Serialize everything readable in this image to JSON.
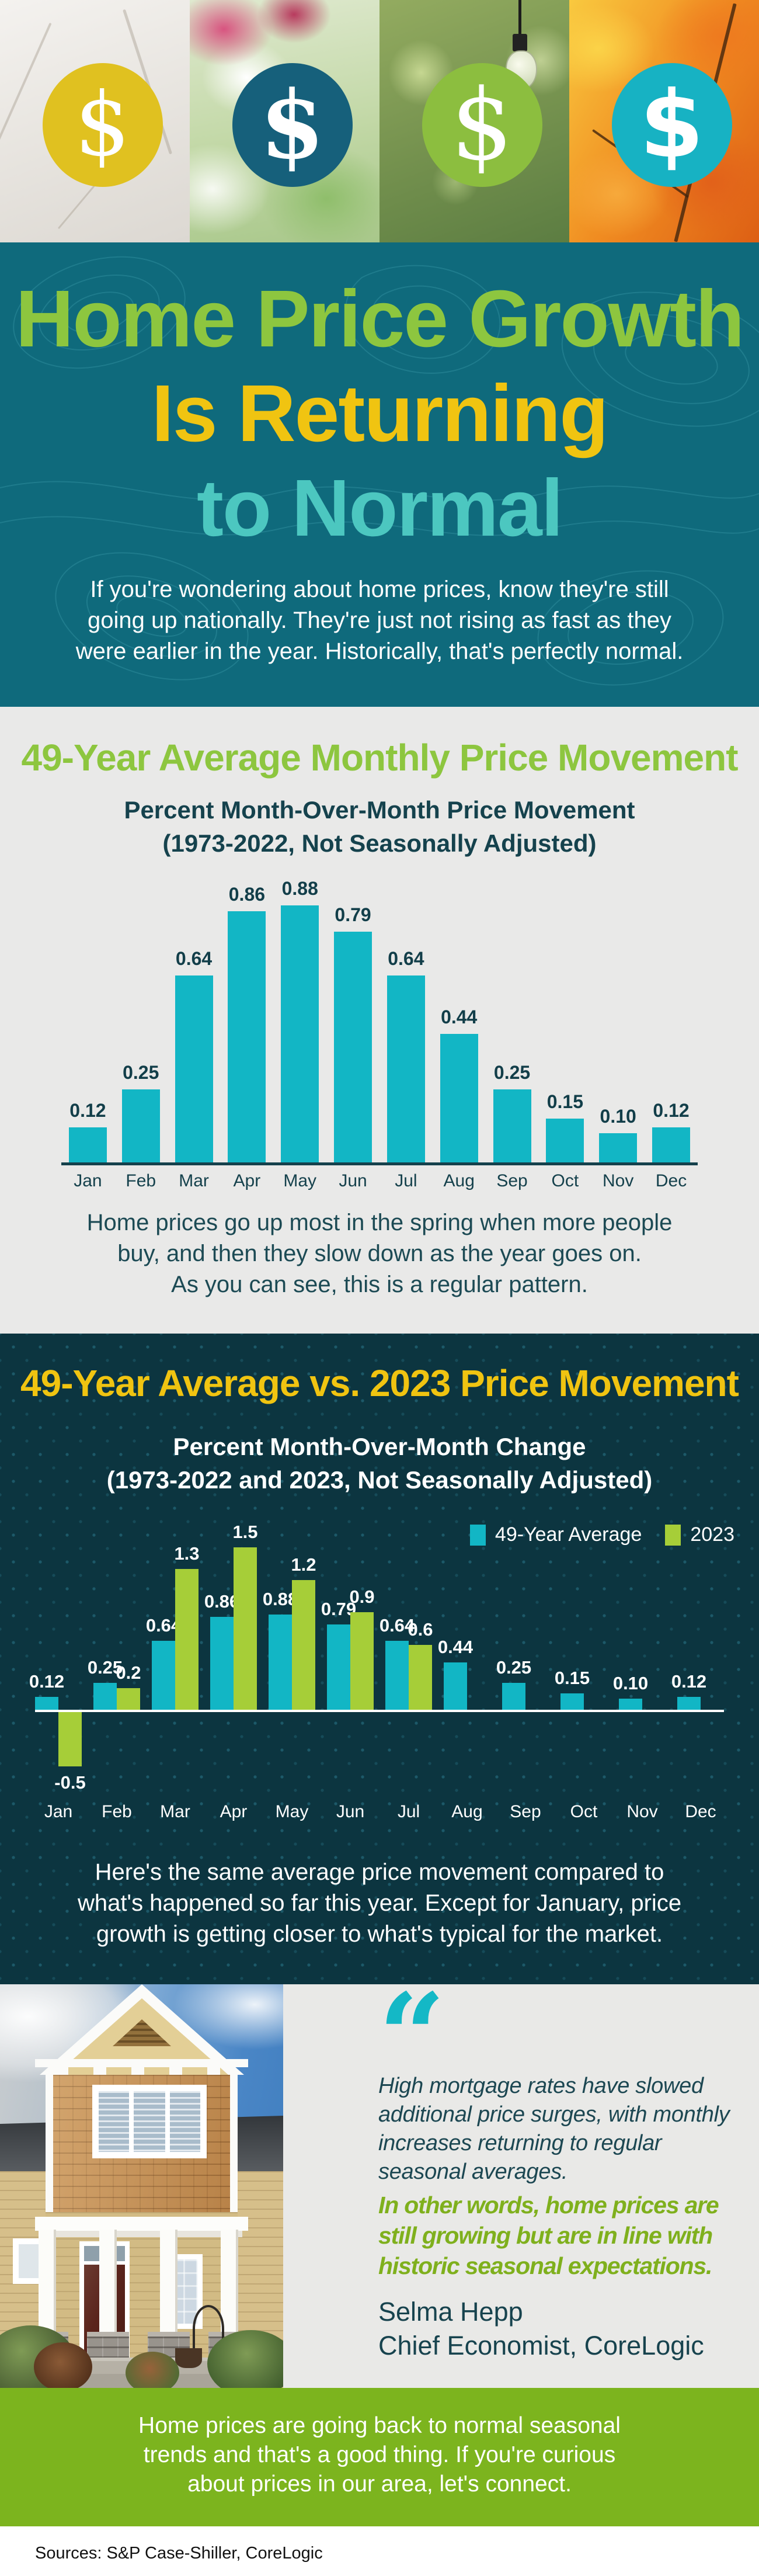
{
  "hero": {
    "dollar_symbol": "$",
    "photos": [
      {
        "season": "winter-branches",
        "circle_color": "#e0c120"
      },
      {
        "season": "spring-flowers",
        "circle_color": "#16607b"
      },
      {
        "season": "summer-lightbulb",
        "circle_color": "#8cbe3f"
      },
      {
        "season": "fall-leaves",
        "circle_color": "#17b2c3"
      }
    ]
  },
  "title": {
    "line1": "Home Price Growth",
    "line2": "Is Returning",
    "line3": "to Normal",
    "colors": {
      "line1": "#8dc63f",
      "line2": "#f0c411",
      "line3": "#4cc7c0",
      "background": "#0f6a7c"
    },
    "intro_lines": [
      "If you're wondering about home prices, know they're still",
      "going up nationally. They're just not rising as fast as they",
      "were earlier in the year. Historically, that's perfectly normal."
    ]
  },
  "chart1_section": {
    "title_color": "#8dc63f",
    "subtitle_line1": "Percent Month-Over-Month Price Movement",
    "subtitle_line2": "(1973-2022, Not Seasonally Adjusted)",
    "caption_lines": [
      "Home prices go up most in the spring when more people",
      "buy, and then they slow down as the year goes on.",
      "As you can see, this is a regular pattern."
    ]
  },
  "chart2_section": {
    "title_color": "#f0c411",
    "subtitle_line1": "Percent Month-Over-Month Change",
    "subtitle_line2": "(1973-2022 and 2023, Not Seasonally Adjusted)",
    "caption_lines": [
      "Here's the same average price movement compared to",
      "what's happened so far this year. Except for January, price",
      "growth is getting closer to what's typical for the market."
    ]
  },
  "chart_data": [
    {
      "type": "bar",
      "title": "49-Year Average Monthly Price Movement",
      "subtitle": "Percent Month-Over-Month Price Movement (1973-2022, Not Seasonally Adjusted)",
      "categories": [
        "Jan",
        "Feb",
        "Mar",
        "Apr",
        "May",
        "Jun",
        "Jul",
        "Aug",
        "Sep",
        "Oct",
        "Nov",
        "Dec"
      ],
      "values": [
        0.12,
        0.25,
        0.64,
        0.86,
        0.88,
        0.79,
        0.64,
        0.44,
        0.25,
        0.15,
        0.1,
        0.12
      ],
      "value_labels": [
        "0.12",
        "0.25",
        "0.64",
        "0.86",
        "0.88",
        "0.79",
        "0.64",
        "0.44",
        "0.25",
        "0.15",
        "0.10",
        "0.12"
      ],
      "bar_color": "#12b6c5",
      "xlabel": "",
      "ylabel": "",
      "ylim": [
        0,
        0.95
      ],
      "grid": false,
      "legend": false
    },
    {
      "type": "bar",
      "title": "49-Year Average vs. 2023 Price Movement",
      "subtitle": "Percent Month-Over-Month Change (1973-2022 and 2023, Not Seasonally Adjusted)",
      "categories": [
        "Jan",
        "Feb",
        "Mar",
        "Apr",
        "May",
        "Jun",
        "Jul",
        "Aug",
        "Sep",
        "Oct",
        "Nov",
        "Dec"
      ],
      "series": [
        {
          "name": "49-Year Average",
          "color": "#12b6c5",
          "values": [
            0.12,
            0.25,
            0.64,
            0.86,
            0.88,
            0.79,
            0.64,
            0.44,
            0.25,
            0.15,
            0.1,
            0.12
          ],
          "value_labels": [
            "0.12",
            "0.25",
            "0.64",
            "0.86",
            "0.88",
            "0.79",
            "0.64",
            "0.44",
            "0.25",
            "0.15",
            "0.10",
            "0.12"
          ]
        },
        {
          "name": "2023",
          "color": "#a6ce38",
          "values": [
            -0.5,
            0.2,
            1.3,
            1.5,
            1.2,
            0.9,
            0.6,
            null,
            null,
            null,
            null,
            null
          ],
          "value_labels": [
            "-0.5",
            "0.2",
            "1.3",
            "1.5",
            "1.2",
            "0.9",
            "0.6",
            "",
            "",
            "",
            "",
            ""
          ]
        }
      ],
      "xlabel": "",
      "ylabel": "",
      "ylim": [
        -0.6,
        1.6
      ],
      "baseline_color": "#ffffff",
      "grid": false,
      "legend_position": "top-right"
    }
  ],
  "quote": {
    "mark": "“",
    "accent_color": "#14b8c6",
    "text_lines": [
      "High mortgage rates have slowed",
      "additional price surges, with monthly",
      "increases returning to regular",
      "seasonal averages."
    ],
    "emphasis_color": "#7fb01d",
    "emphasis_lines": [
      "In other words, home prices are",
      "still growing but are in line with",
      "historic seasonal expectations."
    ],
    "attribution_name": "Selma Hepp",
    "attribution_title": "Chief Economist, CoreLogic"
  },
  "cta": {
    "background_color": "#7cb41e",
    "lines": [
      "Home prices are going back to normal seasonal",
      "trends and that's a good thing. If you're curious",
      "about prices in our area, let's connect."
    ]
  },
  "footer": {
    "sources": "Sources: S&P Case-Shiller, CoreLogic"
  }
}
